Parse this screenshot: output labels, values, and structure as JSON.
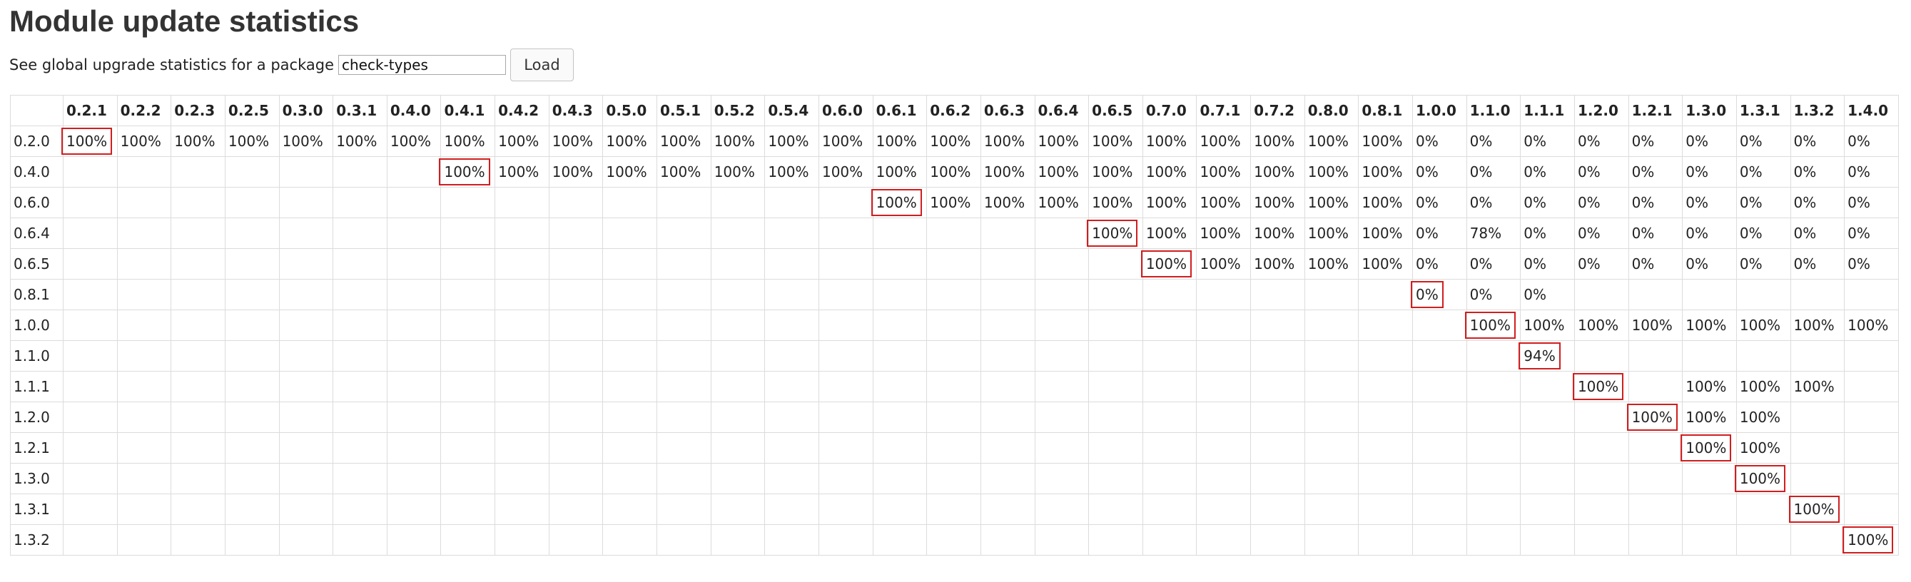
{
  "page": {
    "title": "Module update statistics",
    "form_label": "See global upgrade statistics for a package",
    "package_value": "check-types",
    "load_label": "Load"
  },
  "table": {
    "columns": [
      "0.2.1",
      "0.2.2",
      "0.2.3",
      "0.2.5",
      "0.3.0",
      "0.3.1",
      "0.4.0",
      "0.4.1",
      "0.4.2",
      "0.4.3",
      "0.5.0",
      "0.5.1",
      "0.5.2",
      "0.5.4",
      "0.6.0",
      "0.6.1",
      "0.6.2",
      "0.6.3",
      "0.6.4",
      "0.6.5",
      "0.7.0",
      "0.7.1",
      "0.7.2",
      "0.8.0",
      "0.8.1",
      "1.0.0",
      "1.1.0",
      "1.1.1",
      "1.2.0",
      "1.2.1",
      "1.3.0",
      "1.3.1",
      "1.3.2",
      "1.4.0"
    ],
    "rows": [
      {
        "label": "0.2.0",
        "highlight": 0,
        "cells": [
          "100%",
          "100%",
          "100%",
          "100%",
          "100%",
          "100%",
          "100%",
          "100%",
          "100%",
          "100%",
          "100%",
          "100%",
          "100%",
          "100%",
          "100%",
          "100%",
          "100%",
          "100%",
          "100%",
          "100%",
          "100%",
          "100%",
          "100%",
          "100%",
          "100%",
          "0%",
          "0%",
          "0%",
          "0%",
          "0%",
          "0%",
          "0%",
          "0%",
          "0%"
        ]
      },
      {
        "label": "0.4.0",
        "highlight": 7,
        "cells": [
          "",
          "",
          "",
          "",
          "",
          "",
          "",
          "100%",
          "100%",
          "100%",
          "100%",
          "100%",
          "100%",
          "100%",
          "100%",
          "100%",
          "100%",
          "100%",
          "100%",
          "100%",
          "100%",
          "100%",
          "100%",
          "100%",
          "100%",
          "0%",
          "0%",
          "0%",
          "0%",
          "0%",
          "0%",
          "0%",
          "0%",
          "0%"
        ]
      },
      {
        "label": "0.6.0",
        "highlight": 15,
        "cells": [
          "",
          "",
          "",
          "",
          "",
          "",
          "",
          "",
          "",
          "",
          "",
          "",
          "",
          "",
          "",
          "100%",
          "100%",
          "100%",
          "100%",
          "100%",
          "100%",
          "100%",
          "100%",
          "100%",
          "100%",
          "0%",
          "0%",
          "0%",
          "0%",
          "0%",
          "0%",
          "0%",
          "0%",
          "0%"
        ]
      },
      {
        "label": "0.6.4",
        "highlight": 19,
        "cells": [
          "",
          "",
          "",
          "",
          "",
          "",
          "",
          "",
          "",
          "",
          "",
          "",
          "",
          "",
          "",
          "",
          "",
          "",
          "",
          "100%",
          "100%",
          "100%",
          "100%",
          "100%",
          "100%",
          "0%",
          "78%",
          "0%",
          "0%",
          "0%",
          "0%",
          "0%",
          "0%",
          "0%"
        ]
      },
      {
        "label": "0.6.5",
        "highlight": 20,
        "cells": [
          "",
          "",
          "",
          "",
          "",
          "",
          "",
          "",
          "",
          "",
          "",
          "",
          "",
          "",
          "",
          "",
          "",
          "",
          "",
          "",
          "100%",
          "100%",
          "100%",
          "100%",
          "100%",
          "0%",
          "0%",
          "0%",
          "0%",
          "0%",
          "0%",
          "0%",
          "0%",
          "0%"
        ]
      },
      {
        "label": "0.8.1",
        "highlight": 25,
        "cells": [
          "",
          "",
          "",
          "",
          "",
          "",
          "",
          "",
          "",
          "",
          "",
          "",
          "",
          "",
          "",
          "",
          "",
          "",
          "",
          "",
          "",
          "",
          "",
          "",
          "",
          "0%",
          "0%",
          "0%",
          "",
          "",
          "",
          "",
          "",
          ""
        ]
      },
      {
        "label": "1.0.0",
        "highlight": 26,
        "cells": [
          "",
          "",
          "",
          "",
          "",
          "",
          "",
          "",
          "",
          "",
          "",
          "",
          "",
          "",
          "",
          "",
          "",
          "",
          "",
          "",
          "",
          "",
          "",
          "",
          "",
          "",
          "100%",
          "100%",
          "100%",
          "100%",
          "100%",
          "100%",
          "100%",
          "100%"
        ]
      },
      {
        "label": "1.1.0",
        "highlight": 27,
        "cells": [
          "",
          "",
          "",
          "",
          "",
          "",
          "",
          "",
          "",
          "",
          "",
          "",
          "",
          "",
          "",
          "",
          "",
          "",
          "",
          "",
          "",
          "",
          "",
          "",
          "",
          "",
          "",
          "94%",
          "",
          "",
          "",
          "",
          "",
          ""
        ]
      },
      {
        "label": "1.1.1",
        "highlight": 28,
        "cells": [
          "",
          "",
          "",
          "",
          "",
          "",
          "",
          "",
          "",
          "",
          "",
          "",
          "",
          "",
          "",
          "",
          "",
          "",
          "",
          "",
          "",
          "",
          "",
          "",
          "",
          "",
          "",
          "",
          "100%",
          "",
          "100%",
          "100%",
          "100%",
          ""
        ]
      },
      {
        "label": "1.2.0",
        "highlight": 29,
        "cells": [
          "",
          "",
          "",
          "",
          "",
          "",
          "",
          "",
          "",
          "",
          "",
          "",
          "",
          "",
          "",
          "",
          "",
          "",
          "",
          "",
          "",
          "",
          "",
          "",
          "",
          "",
          "",
          "",
          "",
          "100%",
          "100%",
          "100%",
          "",
          ""
        ]
      },
      {
        "label": "1.2.1",
        "highlight": 30,
        "cells": [
          "",
          "",
          "",
          "",
          "",
          "",
          "",
          "",
          "",
          "",
          "",
          "",
          "",
          "",
          "",
          "",
          "",
          "",
          "",
          "",
          "",
          "",
          "",
          "",
          "",
          "",
          "",
          "",
          "",
          "",
          "100%",
          "100%",
          "",
          ""
        ]
      },
      {
        "label": "1.3.0",
        "highlight": 31,
        "cells": [
          "",
          "",
          "",
          "",
          "",
          "",
          "",
          "",
          "",
          "",
          "",
          "",
          "",
          "",
          "",
          "",
          "",
          "",
          "",
          "",
          "",
          "",
          "",
          "",
          "",
          "",
          "",
          "",
          "",
          "",
          "",
          "100%",
          "",
          ""
        ]
      },
      {
        "label": "1.3.1",
        "highlight": 32,
        "cells": [
          "",
          "",
          "",
          "",
          "",
          "",
          "",
          "",
          "",
          "",
          "",
          "",
          "",
          "",
          "",
          "",
          "",
          "",
          "",
          "",
          "",
          "",
          "",
          "",
          "",
          "",
          "",
          "",
          "",
          "",
          "",
          "",
          "100%",
          ""
        ]
      },
      {
        "label": "1.3.2",
        "highlight": 33,
        "cells": [
          "",
          "",
          "",
          "",
          "",
          "",
          "",
          "",
          "",
          "",
          "",
          "",
          "",
          "",
          "",
          "",
          "",
          "",
          "",
          "",
          "",
          "",
          "",
          "",
          "",
          "",
          "",
          "",
          "",
          "",
          "",
          "",
          "",
          "100%"
        ]
      }
    ]
  },
  "colors": {
    "highlight_border": "#d11e1e",
    "grid_border": "#dcdcdc"
  }
}
